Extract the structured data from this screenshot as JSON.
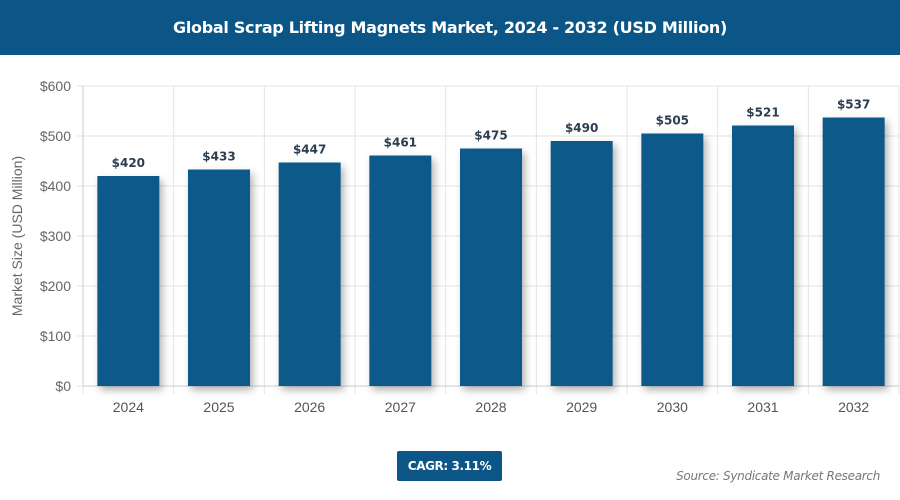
{
  "header": {
    "title": "Global Scrap Lifting Magnets Market, 2024 - 2032 (USD Million)"
  },
  "footer": {
    "cagr": "CAGR: 3.11%",
    "source": "Source: Syndicate Market Research"
  },
  "colors": {
    "header": "#0b5687",
    "bar": "#0d5a8a"
  },
  "chart_data": {
    "type": "bar",
    "title": "Global Scrap Lifting Magnets Market, 2024 - 2032 (USD Million)",
    "xlabel": "",
    "ylabel": "Market Size (USD Million)",
    "categories": [
      "2024",
      "2025",
      "2026",
      "2027",
      "2028",
      "2029",
      "2030",
      "2031",
      "2032"
    ],
    "values": [
      420,
      433,
      447,
      461,
      475,
      490,
      505,
      521,
      537
    ],
    "data_labels": [
      "$420",
      "$433",
      "$447",
      "$461",
      "$475",
      "$490",
      "$505",
      "$521",
      "$537"
    ],
    "ylim": [
      0,
      600
    ],
    "yticks": [
      0,
      100,
      200,
      300,
      400,
      500,
      600
    ],
    "ytick_labels": [
      "$0",
      "$100",
      "$200",
      "$300",
      "$400",
      "$500",
      "$600"
    ],
    "grid": true
  }
}
